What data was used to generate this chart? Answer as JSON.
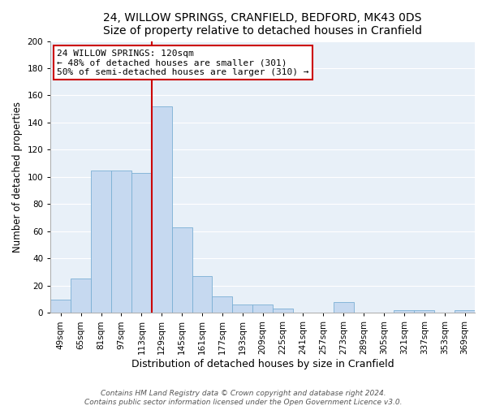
{
  "title": "24, WILLOW SPRINGS, CRANFIELD, BEDFORD, MK43 0DS",
  "subtitle": "Size of property relative to detached houses in Cranfield",
  "xlabel": "Distribution of detached houses by size in Cranfield",
  "ylabel": "Number of detached properties",
  "categories": [
    "49sqm",
    "65sqm",
    "81sqm",
    "97sqm",
    "113sqm",
    "129sqm",
    "145sqm",
    "161sqm",
    "177sqm",
    "193sqm",
    "209sqm",
    "225sqm",
    "241sqm",
    "257sqm",
    "273sqm",
    "289sqm",
    "305sqm",
    "321sqm",
    "337sqm",
    "353sqm",
    "369sqm"
  ],
  "values": [
    10,
    25,
    105,
    105,
    103,
    152,
    63,
    27,
    12,
    6,
    6,
    3,
    0,
    0,
    8,
    0,
    0,
    2,
    2,
    0,
    2
  ],
  "bar_color": "#c6d9f0",
  "bar_edgecolor": "#7aafd4",
  "bar_width": 1.0,
  "vline_pos": 4.5,
  "vline_color": "#cc0000",
  "annotation_line1": "24 WILLOW SPRINGS: 120sqm",
  "annotation_line2": "← 48% of detached houses are smaller (301)",
  "annotation_line3": "50% of semi-detached houses are larger (310) →",
  "annotation_box_facecolor": "#ffffff",
  "annotation_box_edgecolor": "#cc0000",
  "plot_bg_color": "#e8f0f8",
  "fig_bg_color": "#ffffff",
  "ylim": [
    0,
    200
  ],
  "yticks": [
    0,
    20,
    40,
    60,
    80,
    100,
    120,
    140,
    160,
    180,
    200
  ],
  "grid_color": "#ffffff",
  "footnote1": "Contains HM Land Registry data © Crown copyright and database right 2024.",
  "footnote2": "Contains public sector information licensed under the Open Government Licence v3.0.",
  "title_fontsize": 10,
  "annotation_fontsize": 8,
  "tick_fontsize": 7.5,
  "ylabel_fontsize": 8.5,
  "xlabel_fontsize": 9,
  "footnote_fontsize": 6.5
}
